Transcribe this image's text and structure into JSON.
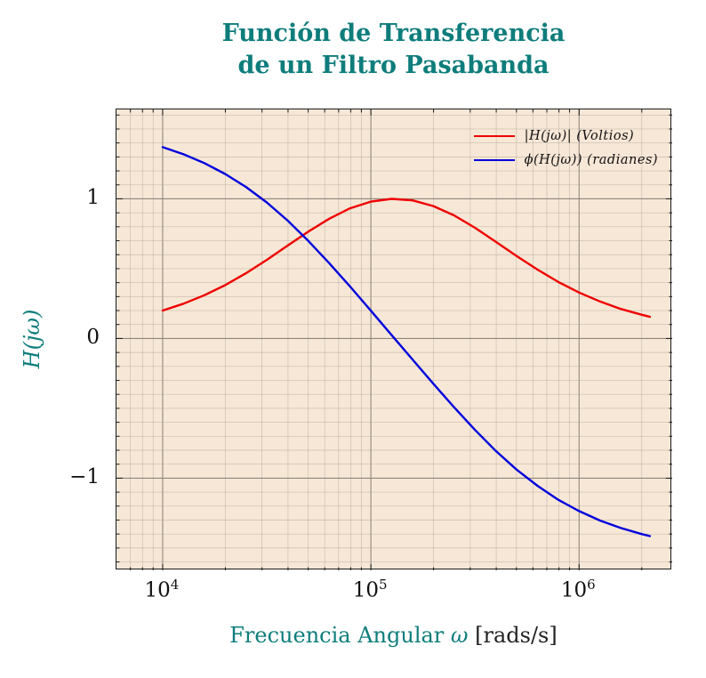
{
  "title": {
    "line1": "Función de Transferencia",
    "line2": "de un Filtro Pasabanda"
  },
  "colors": {
    "accent_teal": "#0e7d7c",
    "magnitude_red": "#ee0000",
    "phase_blue": "#0000dd",
    "plot_background": "#f7e7d6",
    "grid_minor": "#aaa294",
    "grid_major": "#8a8378",
    "frame": "#1a1a1a"
  },
  "chart_data": {
    "type": "line",
    "title": "Función de Transferencia de un Filtro Pasabanda",
    "xscale": "log",
    "xlim": [
      6000,
      2800000
    ],
    "ylim": [
      -1.66,
      1.64
    ],
    "grid": "both",
    "legend_position": "top-right",
    "xlabel_main": "Frecuencia Angular",
    "xlabel_symbol": "ω",
    "xlabel_unit": "[rads/s]",
    "ylabel": "H(jω)",
    "x_ticks": [
      {
        "value": 10000,
        "base": "10",
        "exp": "4"
      },
      {
        "value": 100000,
        "base": "10",
        "exp": "5"
      },
      {
        "value": 1000000,
        "base": "10",
        "exp": "6"
      }
    ],
    "y_ticks": [
      {
        "value": 1,
        "label": "1"
      },
      {
        "value": 0,
        "label": "0"
      },
      {
        "value": -1,
        "label": "−1"
      }
    ],
    "omega": [
      10000,
      12589,
      15849,
      19953,
      25119,
      31623,
      39811,
      50119,
      63096,
      79433,
      100000,
      125893,
      158489,
      199526,
      251189,
      316228,
      398107,
      501187,
      630957,
      794328,
      1000000,
      1258925,
      1584893,
      1995262,
      2187762
    ],
    "series": [
      {
        "key": "magnitude",
        "name": "|H(jω)| (Voltios)",
        "color": "#ee0000",
        "values": [
          0.2,
          0.249,
          0.31,
          0.382,
          0.467,
          0.563,
          0.665,
          0.766,
          0.858,
          0.932,
          0.98,
          1.0,
          0.989,
          0.948,
          0.881,
          0.793,
          0.693,
          0.591,
          0.493,
          0.405,
          0.329,
          0.265,
          0.212,
          0.17,
          0.155
        ]
      },
      {
        "key": "phase",
        "name": "ϕ(H(jω)) (radianes)",
        "color": "#0000dd",
        "values": [
          1.37,
          1.319,
          1.256,
          1.178,
          1.085,
          0.974,
          0.844,
          0.698,
          0.539,
          0.372,
          0.199,
          0.024,
          -0.151,
          -0.324,
          -0.493,
          -0.655,
          -0.805,
          -0.939,
          -1.055,
          -1.155,
          -1.236,
          -1.303,
          -1.357,
          -1.4,
          -1.415
        ]
      }
    ]
  }
}
